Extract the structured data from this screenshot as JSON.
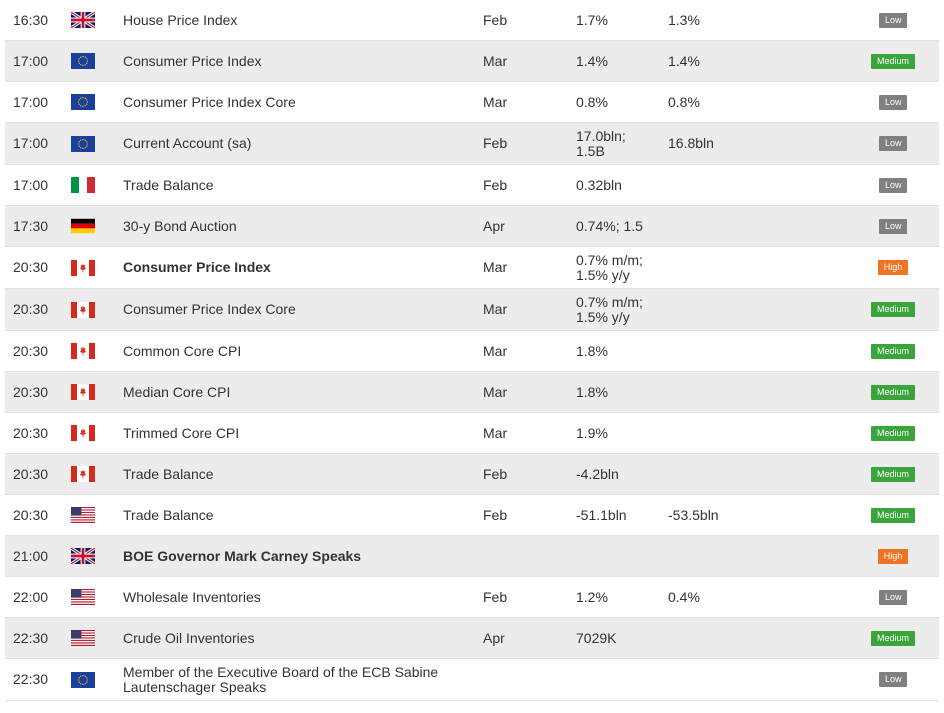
{
  "colors": {
    "low": "#808080",
    "medium": "#3aa53a",
    "high": "#f07223",
    "row_alt": "#ececec"
  },
  "rows": [
    {
      "time": "16:30",
      "flag": "uk-flag-icon",
      "event": "House Price Index",
      "bold": false,
      "period": "Feb",
      "actual": "1.7%",
      "previous": "1.3%",
      "importance": "Low",
      "level": "low"
    },
    {
      "time": "17:00",
      "flag": "eu-flag-icon",
      "event": "Consumer Price Index",
      "bold": false,
      "period": "Mar",
      "actual": "1.4%",
      "previous": "1.4%",
      "importance": "Medium",
      "level": "medium"
    },
    {
      "time": "17:00",
      "flag": "eu-flag-icon",
      "event": "Consumer Price Index Core",
      "bold": false,
      "period": "Mar",
      "actual": "0.8%",
      "previous": "0.8%",
      "importance": "Low",
      "level": "low"
    },
    {
      "time": "17:00",
      "flag": "eu-flag-icon",
      "event": "Current Account (sa)",
      "bold": false,
      "period": "Feb",
      "actual": [
        "17.0bln;",
        "1.5B"
      ],
      "previous": "16.8bln",
      "importance": "Low",
      "level": "low"
    },
    {
      "time": "17:00",
      "flag": "italy-flag-icon",
      "event": "Trade Balance",
      "bold": false,
      "period": "Feb",
      "actual": "0.32bln",
      "previous": "",
      "importance": "Low",
      "level": "low"
    },
    {
      "time": "17:30",
      "flag": "germany-flag-icon",
      "event": "30-y Bond Auction",
      "bold": false,
      "period": "Apr",
      "actual": "0.74%; 1.5",
      "previous": "",
      "importance": "Low",
      "level": "low"
    },
    {
      "time": "20:30",
      "flag": "canada-flag-icon",
      "event": "Consumer Price Index",
      "bold": true,
      "period": "Mar",
      "actual": [
        "0.7% m/m;",
        "1.5% y/y"
      ],
      "previous": "",
      "importance": "High",
      "level": "high"
    },
    {
      "time": "20:30",
      "flag": "canada-flag-icon",
      "event": "Consumer Price Index Core",
      "bold": false,
      "period": "Mar",
      "actual": [
        "0.7% m/m;",
        "1.5% y/y"
      ],
      "previous": "",
      "importance": "Medium",
      "level": "medium"
    },
    {
      "time": "20:30",
      "flag": "canada-flag-icon",
      "event": "Common Core CPI",
      "bold": false,
      "period": "Mar",
      "actual": "1.8%",
      "previous": "",
      "importance": "Medium",
      "level": "medium"
    },
    {
      "time": "20:30",
      "flag": "canada-flag-icon",
      "event": "Median Core CPI",
      "bold": false,
      "period": "Mar",
      "actual": "1.8%",
      "previous": "",
      "importance": "Medium",
      "level": "medium"
    },
    {
      "time": "20:30",
      "flag": "canada-flag-icon",
      "event": "Trimmed Core CPI",
      "bold": false,
      "period": "Mar",
      "actual": "1.9%",
      "previous": "",
      "importance": "Medium",
      "level": "medium"
    },
    {
      "time": "20:30",
      "flag": "canada-flag-icon",
      "event": "Trade Balance",
      "bold": false,
      "period": "Feb",
      "actual": "-4.2bln",
      "previous": "",
      "importance": "Medium",
      "level": "medium"
    },
    {
      "time": "20:30",
      "flag": "usa-flag-icon",
      "event": "Trade Balance",
      "bold": false,
      "period": "Feb",
      "actual": "-51.1bln",
      "previous": "-53.5bln",
      "importance": "Medium",
      "level": "medium"
    },
    {
      "time": "21:00",
      "flag": "uk-flag-icon",
      "event": "BOE Governor Mark Carney Speaks",
      "bold": true,
      "period": "",
      "actual": "",
      "previous": "",
      "importance": "High",
      "level": "high"
    },
    {
      "time": "22:00",
      "flag": "usa-flag-icon",
      "event": "Wholesale Inventories",
      "bold": false,
      "period": "Feb",
      "actual": "1.2%",
      "previous": "0.4%",
      "importance": "Low",
      "level": "low"
    },
    {
      "time": "22:30",
      "flag": "usa-flag-icon",
      "event": "Crude Oil Inventories",
      "bold": false,
      "period": "Apr",
      "actual": "7029K",
      "previous": "",
      "importance": "Medium",
      "level": "medium"
    },
    {
      "time": "22:30",
      "flag": "eu-flag-icon",
      "event": [
        "Member of the Executive Board of the ECB Sabine",
        "Lautenschager Speaks"
      ],
      "bold": false,
      "period": "",
      "actual": "",
      "previous": "",
      "importance": "Low",
      "level": "low"
    }
  ]
}
